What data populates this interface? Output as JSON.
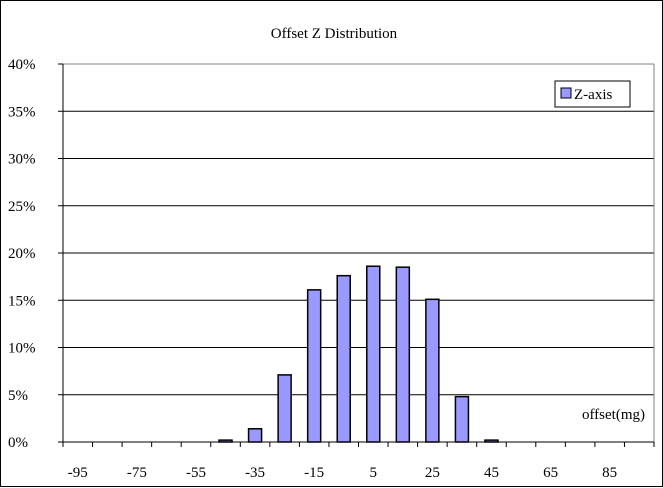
{
  "chart_data": {
    "type": "bar",
    "title": "Offset Z Distribution",
    "xlabel": "offset(mg)",
    "ylabel": "",
    "x_tick_labels": [
      "-95",
      "-75",
      "-55",
      "-35",
      "-15",
      "5",
      "25",
      "45",
      "65",
      "85"
    ],
    "y_tick_labels": [
      "0%",
      "5%",
      "10%",
      "15%",
      "20%",
      "25%",
      "30%",
      "35%",
      "40%"
    ],
    "ylim": [
      0,
      40
    ],
    "grid": true,
    "legend_position": "top-right",
    "bar_color": "#9999ff",
    "categories": [
      -95,
      -85,
      -75,
      -65,
      -55,
      -45,
      -35,
      -25,
      -15,
      -5,
      5,
      15,
      25,
      35,
      45,
      55,
      65,
      75,
      85,
      95
    ],
    "series": [
      {
        "name": "Z-axis",
        "values": [
          0,
          0,
          0,
          0,
          0,
          0.2,
          1.4,
          7.1,
          16.1,
          17.6,
          18.6,
          18.5,
          15.1,
          4.8,
          0.2,
          0,
          0,
          0,
          0,
          0
        ]
      }
    ]
  }
}
